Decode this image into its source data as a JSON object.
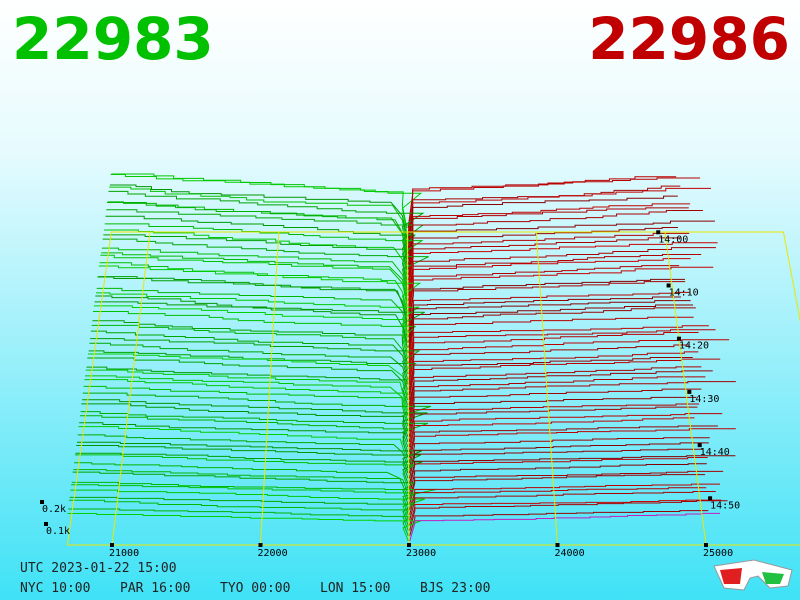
{
  "header": {
    "bid": "22983",
    "ask": "22986"
  },
  "price_axis": {
    "ticks": [
      21000,
      22000,
      23000,
      24000,
      25000
    ]
  },
  "volume_axis": {
    "labels": [
      "0.2k",
      "0.1k"
    ]
  },
  "time_axis": {
    "labels": [
      "14:00",
      "14:10",
      "14:20",
      "14:30",
      "14:40",
      "14:50"
    ]
  },
  "footer": {
    "utc": "UTC 2023-01-22 15:00",
    "zones": [
      "NYC 10:00",
      "PAR 16:00",
      "TYO 00:00",
      "LON 15:00",
      "BJS 23:00"
    ]
  }
}
